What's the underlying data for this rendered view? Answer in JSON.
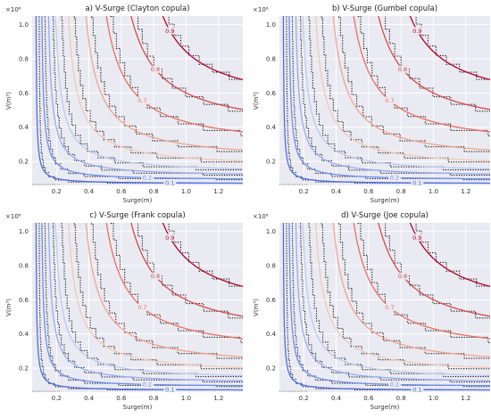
{
  "panels": [
    {
      "title": "a) V-Surge (Clayton copula)",
      "xlabel": "Surge(m)",
      "ylabel": "V(m³)",
      "y_multiplier": "×10⁶",
      "x_ticks": [
        "0.2",
        "0.4",
        "0.6",
        "0.8",
        "1.0",
        "1.2"
      ],
      "y_ticks": [
        "0.2",
        "0.4",
        "0.6",
        "0.8",
        "1.0"
      ],
      "contour_labels": [
        "0.1",
        "0.2",
        "0.7",
        "0.8",
        "0.9"
      ]
    },
    {
      "title": "b) V-Surge (Gumbel copula)",
      "xlabel": "Surge(m)",
      "ylabel": "V(m³)",
      "y_multiplier": "×10⁶",
      "x_ticks": [
        "0.2",
        "0.4",
        "0.6",
        "0.8",
        "1.0",
        "1.2"
      ],
      "y_ticks": [
        "0.2",
        "0.4",
        "0.6",
        "0.8",
        "1.0"
      ],
      "contour_labels": [
        "0.1",
        "0.2",
        "0.7",
        "0.8",
        "0.9"
      ]
    },
    {
      "title": "c) V-Surge (Frank copula)",
      "xlabel": "Surge(m)",
      "ylabel": "V(m³)",
      "y_multiplier": "×10⁶",
      "x_ticks": [
        "0.2",
        "0.4",
        "0.6",
        "0.8",
        "1.0",
        "1.2"
      ],
      "y_ticks": [
        "0.2",
        "0.4",
        "0.6",
        "0.8",
        "1.0"
      ],
      "contour_labels": [
        "0.1",
        "0.2",
        "0.7",
        "0.8",
        "0.9"
      ]
    },
    {
      "title": "d) V-Surge (Joe copula)",
      "xlabel": "Surge(m)",
      "ylabel": "V(m³)",
      "y_multiplier": "×10⁶",
      "x_ticks": [
        "0.2",
        "0.4",
        "0.6",
        "0.8",
        "1.0",
        "1.2"
      ],
      "y_ticks": [
        "0.2",
        "0.4",
        "0.6",
        "0.8",
        "1.0"
      ],
      "contour_labels": [
        "0.1",
        "0.2",
        "0.7",
        "0.8",
        "0.9"
      ]
    }
  ],
  "chart_data": [
    {
      "type": "contour",
      "title": "a) V-Surge (Clayton copula)",
      "xlabel": "Surge(m)",
      "ylabel": "V(m³)",
      "xlim": [
        0.05,
        1.35
      ],
      "ylim": [
        0.06,
        1.05
      ],
      "y_scale_factor": 1000000,
      "grid": true,
      "levels": [
        0.1,
        0.2,
        0.3,
        0.4,
        0.5,
        0.6,
        0.7,
        0.8,
        0.9
      ],
      "labeled_levels": [
        0.1,
        0.2,
        0.7,
        0.8,
        0.9
      ],
      "level_colors": [
        "#4a6fe3",
        "#6d8ff0",
        "#95acf2",
        "#bccbf0",
        "#f0c9b5",
        "#f3a48a",
        "#e8705f",
        "#d44a4a",
        "#b40426"
      ],
      "empirical_contours": "dotted black"
    },
    {
      "type": "contour",
      "title": "b) V-Surge (Gumbel copula)",
      "xlabel": "Surge(m)",
      "ylabel": "V(m³)",
      "xlim": [
        0.05,
        1.35
      ],
      "ylim": [
        0.06,
        1.05
      ],
      "y_scale_factor": 1000000,
      "grid": true,
      "levels": [
        0.1,
        0.2,
        0.3,
        0.4,
        0.5,
        0.6,
        0.7,
        0.8,
        0.9
      ],
      "labeled_levels": [
        0.1,
        0.2,
        0.7,
        0.8,
        0.9
      ],
      "level_colors": [
        "#4a6fe3",
        "#6d8ff0",
        "#95acf2",
        "#bccbf0",
        "#f0c9b5",
        "#f3a48a",
        "#e8705f",
        "#d44a4a",
        "#b40426"
      ],
      "empirical_contours": "dotted black"
    },
    {
      "type": "contour",
      "title": "c) V-Surge (Frank copula)",
      "xlabel": "Surge(m)",
      "ylabel": "V(m³)",
      "xlim": [
        0.05,
        1.35
      ],
      "ylim": [
        0.06,
        1.05
      ],
      "y_scale_factor": 1000000,
      "grid": true,
      "levels": [
        0.1,
        0.2,
        0.3,
        0.4,
        0.5,
        0.6,
        0.7,
        0.8,
        0.9
      ],
      "labeled_levels": [
        0.1,
        0.2,
        0.7,
        0.8,
        0.9
      ],
      "level_colors": [
        "#4a6fe3",
        "#6d8ff0",
        "#95acf2",
        "#bccbf0",
        "#f0c9b5",
        "#f3a48a",
        "#e8705f",
        "#d44a4a",
        "#b40426"
      ],
      "empirical_contours": "dotted black"
    },
    {
      "type": "contour",
      "title": "d) V-Surge (Joe copula)",
      "xlabel": "Surge(m)",
      "ylabel": "V(m³)",
      "xlim": [
        0.05,
        1.35
      ],
      "ylim": [
        0.06,
        1.05
      ],
      "y_scale_factor": 1000000,
      "grid": true,
      "levels": [
        0.1,
        0.2,
        0.3,
        0.4,
        0.5,
        0.6,
        0.7,
        0.8,
        0.9
      ],
      "labeled_levels": [
        0.1,
        0.2,
        0.7,
        0.8,
        0.9
      ],
      "level_colors": [
        "#4a6fe3",
        "#6d8ff0",
        "#95acf2",
        "#bccbf0",
        "#f0c9b5",
        "#f3a48a",
        "#e8705f",
        "#d44a4a",
        "#b40426"
      ],
      "empirical_contours": "dotted black"
    }
  ]
}
